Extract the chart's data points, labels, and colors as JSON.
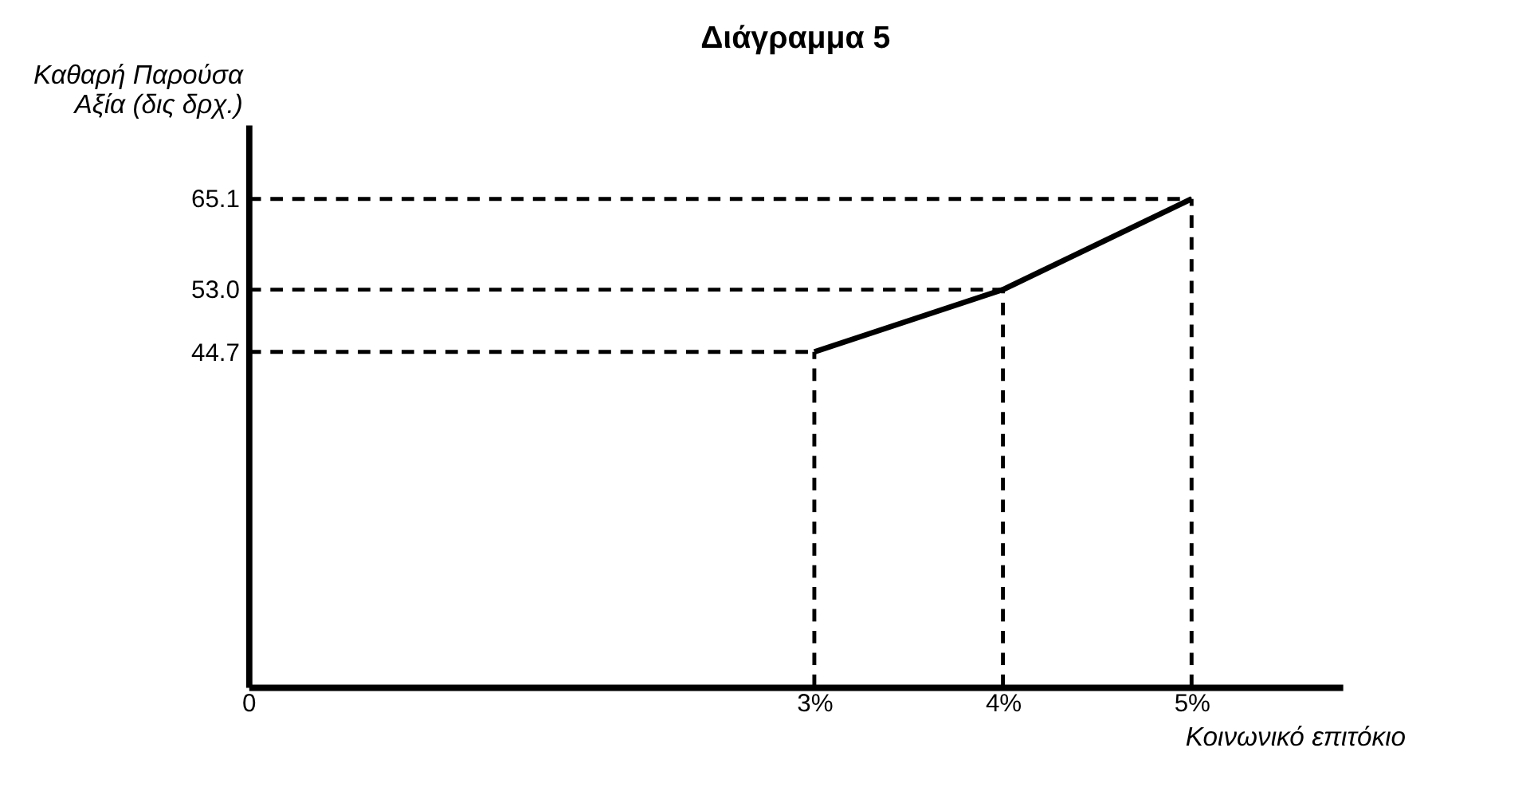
{
  "chart_data": {
    "type": "line",
    "title": "Διάγραμμα 5",
    "xlabel": "Κοινωνικό επιτόκιο",
    "ylabel": "Καθαρή Παρούσα Αξία (δις δρχ.)",
    "x": [
      3,
      4,
      5
    ],
    "series": [
      {
        "color": "#000000",
        "values": [
          44.7,
          53.0,
          65.1
        ]
      }
    ],
    "xlim": [
      0,
      5.8
    ],
    "ylim": [
      0,
      75
    ],
    "xticks": [
      0,
      {
        "value": 3,
        "label": "3%"
      },
      {
        "value": 4,
        "label": "4%"
      },
      {
        "value": 5,
        "label": "5%"
      }
    ],
    "yticks": [
      44.7,
      {
        "value": 53.0,
        "label": "53.0"
      },
      65.1
    ],
    "ref_lines": [
      {
        "axis": "x",
        "value": 3,
        "line_style": "dashed",
        "color": "#000000"
      },
      {
        "axis": "x",
        "value": 4,
        "line_style": "dashed",
        "color": "#000000"
      },
      {
        "axis": "x",
        "value": 5,
        "line_style": "dashed",
        "color": "#000000"
      },
      {
        "axis": "y",
        "value": 44.7,
        "line_style": "dashed",
        "color": "#000000"
      },
      {
        "axis": "y",
        "value": 53.0,
        "line_style": "dashed",
        "color": "#000000"
      },
      {
        "axis": "y",
        "value": 65.1,
        "line_style": "dashed",
        "color": "#000000"
      }
    ],
    "grid": false,
    "marker": "none",
    "line_style": "solid"
  }
}
